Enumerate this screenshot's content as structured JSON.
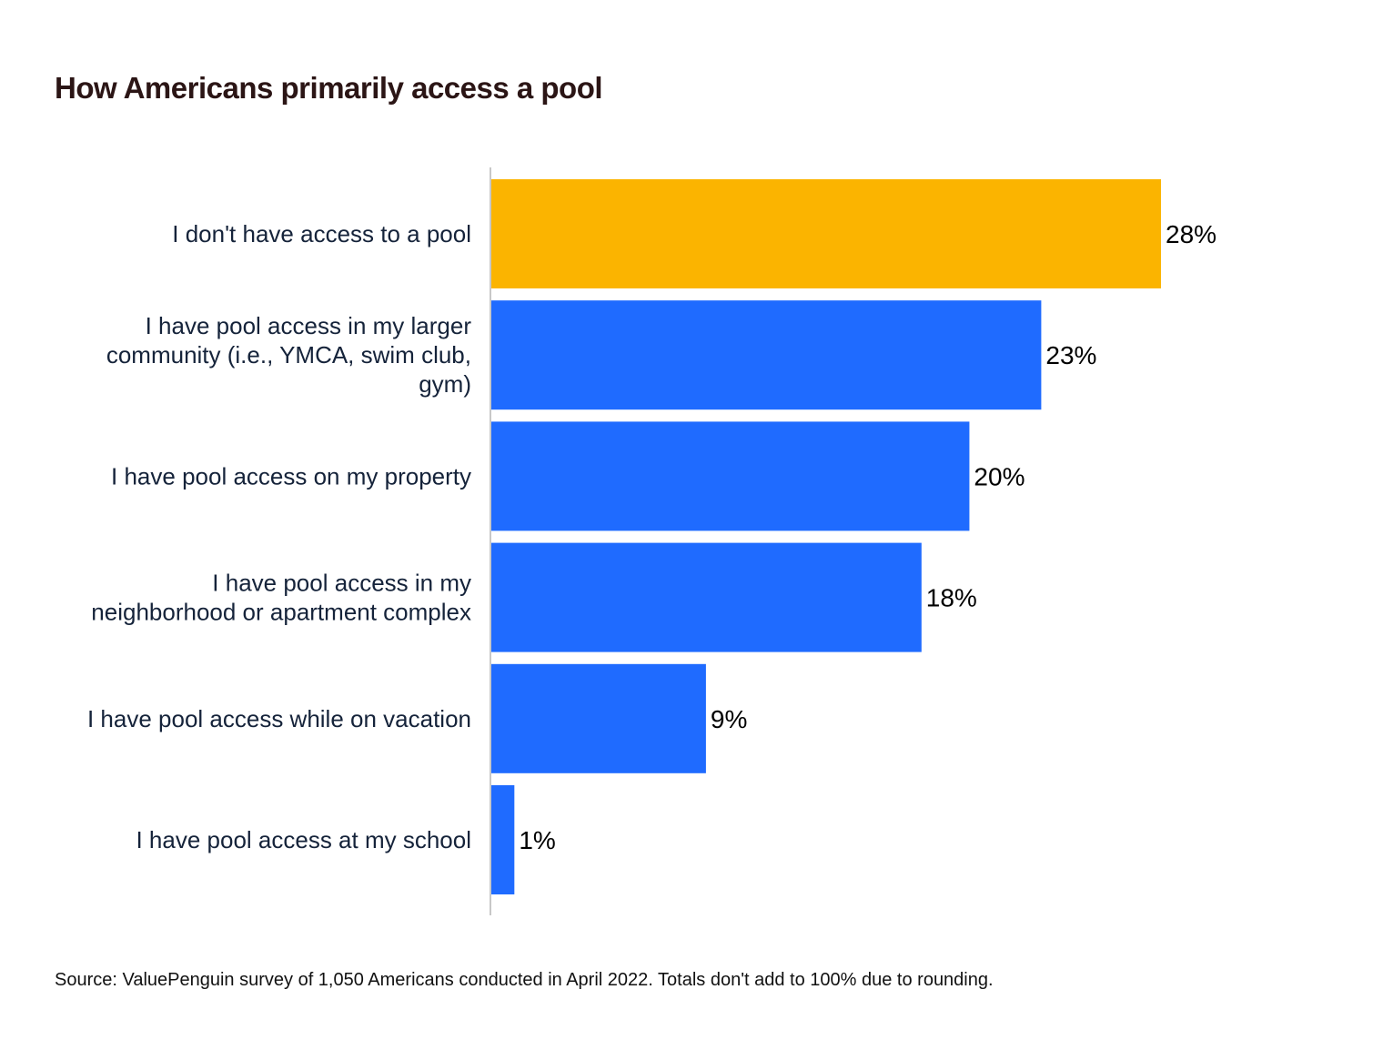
{
  "chart_data": {
    "type": "bar",
    "orientation": "horizontal",
    "title": "How Americans primarily access a pool",
    "categories": [
      [
        "I don't have access to a pool"
      ],
      [
        "I have pool access in my larger",
        "community (i.e., YMCA, swim club,",
        "gym)"
      ],
      [
        "I have pool access on my property"
      ],
      [
        "I have pool access in my",
        "neighborhood or apartment complex"
      ],
      [
        "I have pool access while on vacation"
      ],
      [
        "I have pool access at my school"
      ]
    ],
    "values": [
      28,
      23,
      20,
      18,
      9,
      1
    ],
    "value_labels": [
      "28%",
      "23%",
      "20%",
      "18%",
      "9%",
      "1%"
    ],
    "unit": "%",
    "xlim": [
      0,
      28
    ],
    "grid": false,
    "colors": [
      "#fbb400",
      "#1f6bff",
      "#1f6bff",
      "#1f6bff",
      "#1f6bff",
      "#1f6bff"
    ],
    "axis_color": "#c8c8c8",
    "source": "Source: ValuePenguin survey of 1,050 Americans conducted in April 2022. Totals don't add to 100% due to rounding."
  }
}
